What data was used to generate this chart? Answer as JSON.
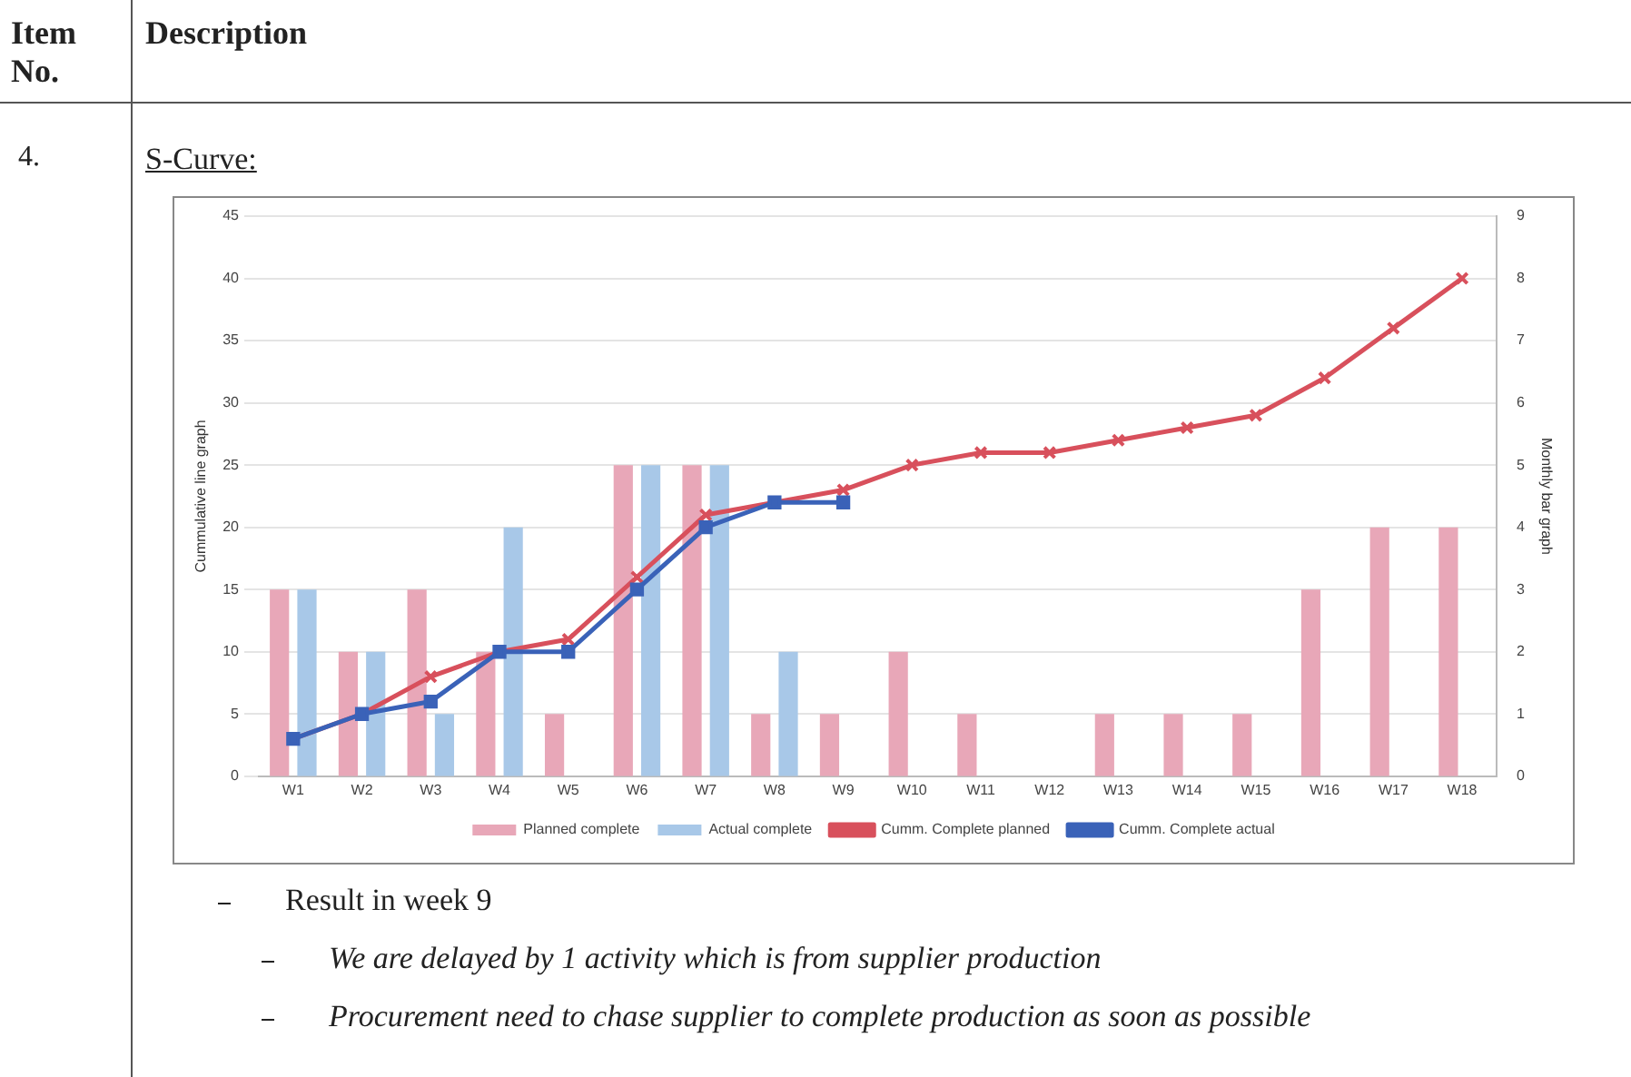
{
  "chart_data": {
    "type": "bar",
    "title": "S-Curve:",
    "ylabel": "Cummulative line graph",
    "y2label": "Monthly bar graph",
    "annotations": [
      "Item No.",
      "Description",
      "4.",
      "Result in week 9",
      "We are delayed by 1 activity which is from supplier production",
      "Procurement need to chase supplier to complete production as soon as possible"
    ],
    "categories": [
      "W1",
      "W2",
      "W3",
      "W4",
      "W5",
      "W6",
      "W7",
      "W8",
      "W9",
      "W10",
      "W11",
      "W12",
      "W13",
      "W14",
      "W15",
      "W16",
      "W17",
      "W18"
    ],
    "series": [
      {
        "name": "Planned complete",
        "axis": "y2",
        "color": "#e8a7b8",
        "values": [
          3,
          2,
          3,
          2,
          1,
          5,
          5,
          1,
          1,
          2,
          1,
          0,
          1,
          1,
          1,
          3,
          4,
          4
        ]
      },
      {
        "name": "Actual complete",
        "axis": "y2",
        "color": "#a8c8e8",
        "values": [
          3,
          2,
          1,
          4,
          0,
          5,
          5,
          2,
          null,
          null,
          null,
          null,
          null,
          null,
          null,
          null,
          null,
          null
        ]
      },
      {
        "name": "Cumm. Complete planned",
        "type": "line",
        "marker": "cross",
        "color": "#d8505c",
        "values": [
          3,
          5,
          8,
          10,
          11,
          16,
          21,
          22,
          23,
          25,
          26,
          26,
          27,
          28,
          29,
          32,
          36,
          40
        ]
      },
      {
        "name": "Cumm. Complete actual",
        "type": "line",
        "marker": "square",
        "color": "#3a62b8",
        "values": [
          3,
          5,
          6,
          10,
          10,
          15,
          20,
          22,
          22,
          null,
          null,
          null,
          null,
          null,
          null,
          null,
          null,
          null
        ]
      }
    ],
    "ylim": [
      0,
      45
    ],
    "yticks": [
      0,
      5,
      10,
      15,
      20,
      25,
      30,
      35,
      40,
      45
    ],
    "y2lim": [
      0,
      9
    ],
    "y2ticks": [
      0,
      1,
      2,
      3,
      4,
      5,
      6,
      7,
      8,
      9
    ],
    "grid": "y",
    "legend": "bottom"
  }
}
